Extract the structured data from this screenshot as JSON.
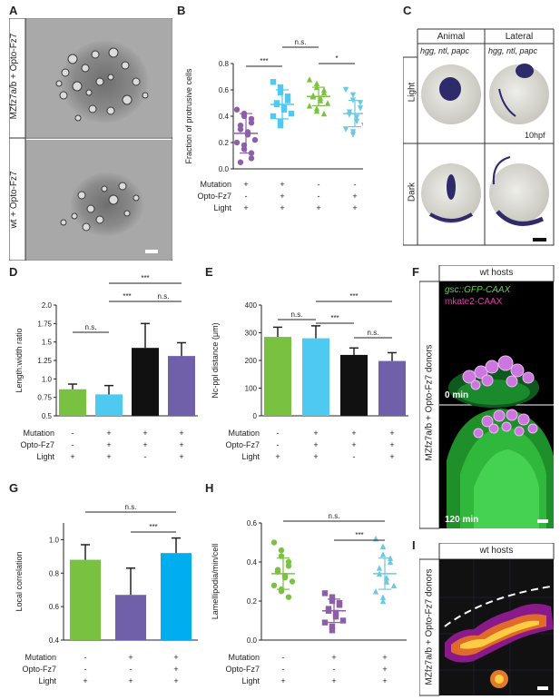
{
  "panel_letters": {
    "A": "A",
    "B": "B",
    "C": "C",
    "D": "D",
    "E": "E",
    "F": "F",
    "G": "G",
    "H": "H",
    "I": "I"
  },
  "panelA": {
    "top_label": "MZfz7a/b + Opto-Fz7",
    "bottom_label": "wt + Opto-Fz7"
  },
  "conditions": {
    "mutation": "Mutation",
    "opto": "Opto-Fz7",
    "light": "Light"
  },
  "sig": {
    "ns": "n.s.",
    "three": "***",
    "one": "*"
  },
  "panelC": {
    "col1": "Animal",
    "col2": "Lateral",
    "row1": "Light",
    "row2": "Dark",
    "markers": "hgg, ntl, papc",
    "stage": "10hpf"
  },
  "panelF": {
    "header": "wt hosts",
    "side_label": "MZfz7a/b + Opto-Fz7 donors",
    "legend1": "gsc::GFP-CAAX",
    "legend2": "mkate2-CAAX",
    "time1": "0 min",
    "time2": "120 min"
  },
  "panelI": {
    "header": "wt hosts",
    "side_label": "MZfz7a/b + Opto-Fz7 donors"
  },
  "colors": {
    "green": "#79c141",
    "blue": "#4ec9ef",
    "black": "#111111",
    "purple": "#7060aa",
    "cyan": "#6cc9e0",
    "scatter_purple": "#8d5fa8"
  },
  "chart_data": [
    {
      "panel": "B",
      "type": "scatter",
      "ylabel": "Fraction of protrusive cells",
      "ylim": [
        0,
        0.8
      ],
      "yticks": [
        "0.0",
        "0.2",
        "0.4",
        "0.6",
        "0.8"
      ],
      "condition_rows": {
        "Mutation": [
          "+",
          "+",
          "-",
          "-"
        ],
        "Opto-Fz7": [
          "-",
          "+",
          "-",
          "+"
        ],
        "Light": [
          "+",
          "+",
          "+",
          "+"
        ]
      },
      "series": [
        {
          "color": "#8d5fa8",
          "marker": "circle",
          "mean": 0.27,
          "sd": 0.15,
          "values": [
            0.45,
            0.42,
            0.4,
            0.38,
            0.35,
            0.33,
            0.3,
            0.28,
            0.26,
            0.22,
            0.2,
            0.18,
            0.15,
            0.12,
            0.08,
            0.05
          ]
        },
        {
          "color": "#4ec9ef",
          "marker": "square",
          "mean": 0.49,
          "sd": 0.11,
          "values": [
            0.66,
            0.62,
            0.58,
            0.55,
            0.52,
            0.5,
            0.49,
            0.47,
            0.45,
            0.42,
            0.4,
            0.36,
            0.33
          ]
        },
        {
          "color": "#7cc242",
          "marker": "triangle",
          "mean": 0.55,
          "sd": 0.07,
          "values": [
            0.68,
            0.65,
            0.62,
            0.6,
            0.58,
            0.56,
            0.55,
            0.54,
            0.52,
            0.5,
            0.48,
            0.46,
            0.44,
            0.42
          ]
        },
        {
          "color": "#6cc9e0",
          "marker": "invtriangle",
          "mean": 0.42,
          "sd": 0.1,
          "values": [
            0.6,
            0.56,
            0.52,
            0.5,
            0.46,
            0.43,
            0.41,
            0.39,
            0.36,
            0.33,
            0.3,
            0.28,
            0.26
          ]
        }
      ]
    },
    {
      "panel": "D",
      "type": "bar",
      "ylabel": "Length:width ratio",
      "ylim": [
        0.5,
        2.0
      ],
      "yticks": [
        "0.5",
        "0.75",
        "1.0",
        "1.25",
        "1.5",
        "1.75",
        "2.0"
      ],
      "condition_rows": {
        "Mutation": [
          "-",
          "+",
          "+",
          "+"
        ],
        "Opto-Fz7": [
          "-",
          "+",
          "+",
          "+"
        ],
        "Light": [
          "+",
          "+",
          "-",
          "+"
        ]
      },
      "values": [
        0.86,
        0.79,
        1.42,
        1.31
      ],
      "errors": [
        0.07,
        0.12,
        0.33,
        0.18
      ],
      "colors": [
        "#79c141",
        "#4ec9ef",
        "#111111",
        "#7060aa"
      ]
    },
    {
      "panel": "E",
      "type": "bar",
      "ylabel": "Nc-ppl distance (μm)",
      "ylim": [
        0,
        400
      ],
      "yticks": [
        "0",
        "100",
        "200",
        "300",
        "400"
      ],
      "condition_rows": {
        "Mutation": [
          "-",
          "+",
          "+",
          "+"
        ],
        "Opto-Fz7": [
          "-",
          "+",
          "+",
          "+"
        ],
        "Light": [
          "+",
          "+",
          "-",
          "+"
        ]
      },
      "values": [
        285,
        280,
        220,
        198
      ],
      "errors": [
        35,
        45,
        25,
        30
      ],
      "colors": [
        "#79c141",
        "#4ec9ef",
        "#111111",
        "#7060aa"
      ]
    },
    {
      "panel": "G",
      "type": "bar",
      "ylabel": "Local correlation",
      "ylim": [
        0.4,
        1.1
      ],
      "yticks": [
        "0.4",
        "0.6",
        "0.8",
        "1.0"
      ],
      "condition_rows": {
        "Mutation": [
          "-",
          "+",
          "+"
        ],
        "Opto-Fz7": [
          "-",
          "-",
          "+"
        ],
        "Light": [
          "+",
          "+",
          "+"
        ]
      },
      "values": [
        0.88,
        0.67,
        0.92
      ],
      "errors": [
        0.09,
        0.16,
        0.09
      ],
      "colors": [
        "#79c141",
        "#7060aa",
        "#00aeef"
      ]
    },
    {
      "panel": "H",
      "type": "scatter",
      "ylabel": "Lamellipodia/min/cell",
      "ylim": [
        0,
        0.6
      ],
      "yticks": [
        "0.0",
        "0.2",
        "0.4",
        "0.6"
      ],
      "condition_rows": {
        "Mutation": [
          "-",
          "+",
          "+"
        ],
        "Opto-Fz7": [
          "-",
          "-",
          "+"
        ],
        "Light": [
          "+",
          "+",
          "+"
        ]
      },
      "series": [
        {
          "color": "#7cc242",
          "marker": "circle",
          "mean": 0.34,
          "sd": 0.08,
          "values": [
            0.5,
            0.46,
            0.43,
            0.4,
            0.38,
            0.36,
            0.35,
            0.33,
            0.32,
            0.3,
            0.28,
            0.26,
            0.25,
            0.22
          ]
        },
        {
          "color": "#8d5fa8",
          "marker": "square",
          "mean": 0.15,
          "sd": 0.06,
          "values": [
            0.24,
            0.22,
            0.2,
            0.19,
            0.18,
            0.16,
            0.15,
            0.14,
            0.12,
            0.1,
            0.09,
            0.07,
            0.05
          ]
        },
        {
          "color": "#6cc9e0",
          "marker": "triangle",
          "mean": 0.34,
          "sd": 0.08,
          "values": [
            0.52,
            0.48,
            0.44,
            0.42,
            0.4,
            0.37,
            0.34,
            0.32,
            0.3,
            0.28,
            0.25,
            0.22,
            0.2
          ]
        }
      ]
    }
  ]
}
